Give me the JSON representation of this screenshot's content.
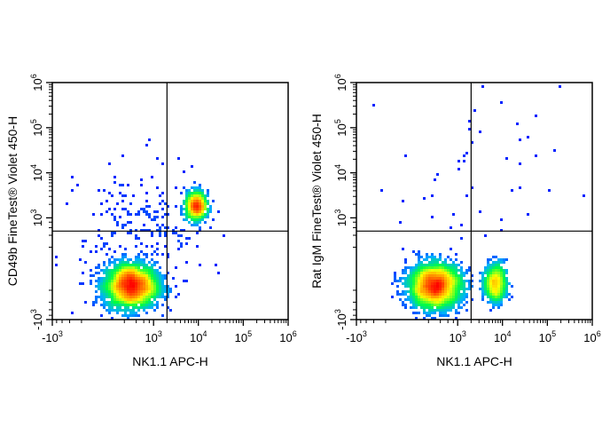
{
  "chart_data": [
    {
      "type": "scatter",
      "subtype": "flow-cytometry-density-plot",
      "xlabel": "NK1.1 APC-H",
      "ylabel": "CD49b FineTest® Violet 450-H",
      "x_scale": "biexponential",
      "y_scale": "biexponential",
      "xlim": [
        -1000,
        1000000
      ],
      "ylim": [
        -1000,
        1000000
      ],
      "x_ticks": [
        {
          "value": -1000,
          "base": "-10",
          "exp": "3"
        },
        {
          "value": 1000,
          "base": "10",
          "exp": "3"
        },
        {
          "value": 10000,
          "base": "10",
          "exp": "4"
        },
        {
          "value": 100000,
          "base": "10",
          "exp": "5"
        },
        {
          "value": 1000000,
          "base": "10",
          "exp": "6"
        }
      ],
      "y_ticks": [
        {
          "value": -1000,
          "base": "-10",
          "exp": "3"
        },
        {
          "value": 1000,
          "base": "10",
          "exp": "3"
        },
        {
          "value": 10000,
          "base": "10",
          "exp": "4"
        },
        {
          "value": 100000,
          "base": "10",
          "exp": "5"
        },
        {
          "value": 1000000,
          "base": "10",
          "exp": "6"
        }
      ],
      "gates": {
        "x": 2000,
        "y": 500
      },
      "populations": [
        {
          "x": 300,
          "y": -150,
          "spread_x": 0.55,
          "spread_y": 0.5,
          "count": 2600
        },
        {
          "x": 9000,
          "y": 1800,
          "spread_x": 0.22,
          "spread_y": 0.32,
          "count": 700
        },
        {
          "x": 600,
          "y": 600,
          "spread_x": 0.7,
          "spread_y": 0.7,
          "count": 220,
          "sparse": true
        }
      ],
      "colormap": [
        "#0000ff",
        "#00b0ff",
        "#00ff40",
        "#ffff00",
        "#ff8000",
        "#ff0000"
      ]
    },
    {
      "type": "scatter",
      "subtype": "flow-cytometry-density-plot",
      "xlabel": "NK1.1 APC-H",
      "ylabel": "Rat IgM FineTest® Violet 450-H",
      "x_scale": "biexponential",
      "y_scale": "biexponential",
      "xlim": [
        -1000,
        1000000
      ],
      "ylim": [
        -1000,
        1000000
      ],
      "x_ticks": [
        {
          "value": -1000,
          "base": "-10",
          "exp": "3"
        },
        {
          "value": 1000,
          "base": "10",
          "exp": "3"
        },
        {
          "value": 10000,
          "base": "10",
          "exp": "4"
        },
        {
          "value": 100000,
          "base": "10",
          "exp": "5"
        },
        {
          "value": 1000000,
          "base": "10",
          "exp": "6"
        }
      ],
      "y_ticks": [
        {
          "value": -1000,
          "base": "-10",
          "exp": "3"
        },
        {
          "value": 1000,
          "base": "10",
          "exp": "3"
        },
        {
          "value": 10000,
          "base": "10",
          "exp": "4"
        },
        {
          "value": 100000,
          "base": "10",
          "exp": "5"
        },
        {
          "value": 1000000,
          "base": "10",
          "exp": "6"
        }
      ],
      "gates": {
        "x": 2000,
        "y": 500
      },
      "populations": [
        {
          "x": 300,
          "y": -150,
          "spread_x": 0.55,
          "spread_y": 0.5,
          "count": 2600
        },
        {
          "x": 7000,
          "y": -120,
          "spread_x": 0.22,
          "spread_y": 0.45,
          "count": 650
        },
        {
          "x": 3000,
          "y": 8000,
          "spread_x": 0.9,
          "spread_y": 1.0,
          "count": 45,
          "sparse": true
        }
      ],
      "colormap": [
        "#0000ff",
        "#00b0ff",
        "#00ff40",
        "#ffff00",
        "#ff8000",
        "#ff0000"
      ]
    }
  ]
}
